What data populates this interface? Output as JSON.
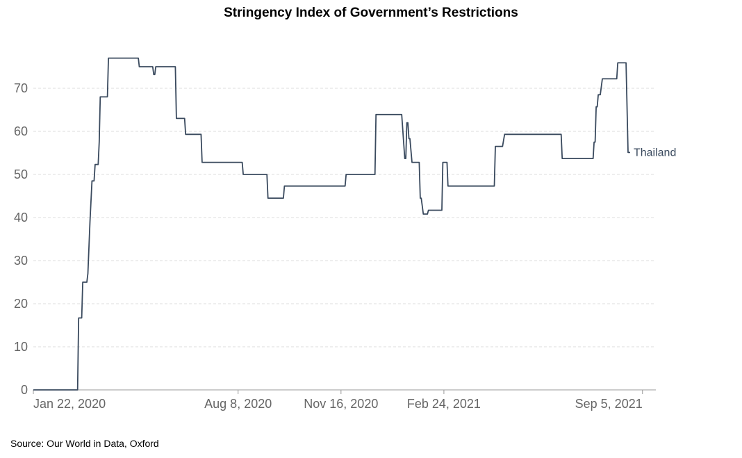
{
  "chart_data": {
    "type": "line",
    "title": "Stringency Index of Government’s Restrictions",
    "source": "Source: Our World in Data, Oxford",
    "xlabel": "",
    "ylabel": "",
    "x_start": "2020-01-22",
    "x_end": "2021-09-18",
    "x_ticks": [
      {
        "date": "2020-01-22",
        "label": "Jan 22, 2020"
      },
      {
        "date": "2020-08-08",
        "label": "Aug 8, 2020"
      },
      {
        "date": "2020-11-16",
        "label": "Nov 16, 2020"
      },
      {
        "date": "2021-02-24",
        "label": "Feb 24, 2021"
      },
      {
        "date": "2021-09-05",
        "label": "Sep 5, 2021"
      }
    ],
    "ylim": [
      0,
      80
    ],
    "y_ticks": [
      0,
      10,
      20,
      30,
      40,
      50,
      60,
      70
    ],
    "grid": true,
    "line_color": "#3a4a5e",
    "series": [
      {
        "name": "Thailand",
        "points": [
          [
            "2020-01-22",
            0
          ],
          [
            "2020-03-05",
            0
          ],
          [
            "2020-03-06",
            16.7
          ],
          [
            "2020-03-09",
            16.7
          ],
          [
            "2020-03-10",
            25
          ],
          [
            "2020-03-14",
            25
          ],
          [
            "2020-03-15",
            27
          ],
          [
            "2020-03-17",
            39
          ],
          [
            "2020-03-19",
            48.5
          ],
          [
            "2020-03-21",
            48.5
          ],
          [
            "2020-03-22",
            52.3
          ],
          [
            "2020-03-25",
            52.3
          ],
          [
            "2020-03-26",
            57.5
          ],
          [
            "2020-03-27",
            68
          ],
          [
            "2020-04-03",
            68
          ],
          [
            "2020-04-04",
            77
          ],
          [
            "2020-05-03",
            77
          ],
          [
            "2020-05-04",
            75
          ],
          [
            "2020-05-17",
            75
          ],
          [
            "2020-05-18",
            73.2
          ],
          [
            "2020-05-19",
            73.2
          ],
          [
            "2020-05-20",
            75
          ],
          [
            "2020-06-08",
            75
          ],
          [
            "2020-06-09",
            63
          ],
          [
            "2020-06-17",
            63
          ],
          [
            "2020-06-18",
            59.3
          ],
          [
            "2020-07-03",
            59.3
          ],
          [
            "2020-07-04",
            52.8
          ],
          [
            "2020-08-12",
            52.8
          ],
          [
            "2020-08-13",
            50
          ],
          [
            "2020-09-05",
            50
          ],
          [
            "2020-09-06",
            44.5
          ],
          [
            "2020-09-21",
            44.5
          ],
          [
            "2020-09-22",
            47.3
          ],
          [
            "2020-11-20",
            47.3
          ],
          [
            "2020-11-21",
            50
          ],
          [
            "2020-12-19",
            50
          ],
          [
            "2020-12-20",
            63.9
          ],
          [
            "2021-01-14",
            63.9
          ],
          [
            "2021-01-17",
            53.7
          ],
          [
            "2021-01-18",
            53.7
          ],
          [
            "2021-01-19",
            62
          ],
          [
            "2021-01-20",
            62
          ],
          [
            "2021-01-21",
            58.3
          ],
          [
            "2021-01-22",
            58.3
          ],
          [
            "2021-01-24",
            52.8
          ],
          [
            "2021-01-31",
            52.8
          ],
          [
            "2021-02-01",
            44.5
          ],
          [
            "2021-02-02",
            44.5
          ],
          [
            "2021-02-04",
            40.8
          ],
          [
            "2021-02-08",
            40.8
          ],
          [
            "2021-02-09",
            41.7
          ],
          [
            "2021-02-22",
            41.7
          ],
          [
            "2021-02-23",
            52.8
          ],
          [
            "2021-02-27",
            52.8
          ],
          [
            "2021-02-28",
            47.3
          ],
          [
            "2021-04-14",
            47.3
          ],
          [
            "2021-04-15",
            56.5
          ],
          [
            "2021-04-22",
            56.5
          ],
          [
            "2021-04-24",
            59.3
          ],
          [
            "2021-06-18",
            59.3
          ],
          [
            "2021-06-19",
            53.7
          ],
          [
            "2021-07-19",
            53.7
          ],
          [
            "2021-07-20",
            57.5
          ],
          [
            "2021-07-21",
            57.5
          ],
          [
            "2021-07-22",
            65.7
          ],
          [
            "2021-07-23",
            65.7
          ],
          [
            "2021-07-24",
            68.5
          ],
          [
            "2021-07-26",
            68.5
          ],
          [
            "2021-07-28",
            72.2
          ],
          [
            "2021-08-11",
            72.2
          ],
          [
            "2021-08-12",
            75.9
          ],
          [
            "2021-08-20",
            75.9
          ],
          [
            "2021-08-22",
            55.1
          ],
          [
            "2021-08-24",
            55.1
          ]
        ]
      }
    ]
  }
}
